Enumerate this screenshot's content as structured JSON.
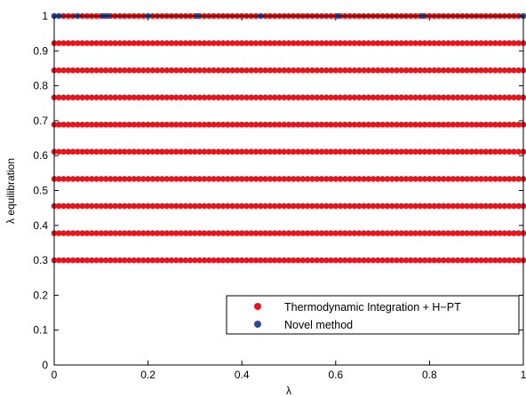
{
  "chart_data": {
    "type": "scatter",
    "xlabel": "λ",
    "ylabel": "λ equilibration",
    "xlim": [
      0,
      1
    ],
    "ylim": [
      0,
      1
    ],
    "x_ticks": [
      0,
      0.2,
      0.4,
      0.6,
      0.8,
      1
    ],
    "x_tick_labels": [
      "0",
      "0.2",
      "0.4",
      "0.6",
      "0.8",
      "1"
    ],
    "y_ticks": [
      0,
      0.1,
      0.2,
      0.3,
      0.4,
      0.5,
      0.6,
      0.7,
      0.8,
      0.9,
      1
    ],
    "y_tick_labels": [
      "0",
      "0.1",
      "0.2",
      "0.3",
      "0.4",
      "0.5",
      "0.6",
      "0.7",
      "0.8",
      "0.9",
      "1"
    ],
    "grid": false,
    "legend_position": "bottom-right",
    "series": [
      {
        "name": "Thermodynamic Integration + H−PT",
        "color": "#e8141c",
        "marker": "circle",
        "description": "points on horizontal levels 0.3, 0.3778, 0.4556, 0.5333, 0.6111, 0.6889, 0.7667, 0.8444, 0.9222, 1 with lambda from 0 to 1 in steps of 0.01",
        "levels": [
          0.3,
          0.3778,
          0.4556,
          0.5333,
          0.6111,
          0.6889,
          0.7667,
          0.8444,
          0.9222,
          1.0
        ],
        "x_start": 0,
        "x_end": 1,
        "x_step": 0.01
      },
      {
        "name": "Novel method",
        "color": "#2b4a9e",
        "marker": "circle",
        "x": [
          0.0,
          0.01,
          0.05,
          0.105,
          0.115,
          0.2,
          0.305,
          0.44,
          0.605,
          0.785,
          1.0
        ],
        "y": [
          1,
          1,
          1,
          1,
          1,
          1,
          1,
          1,
          1,
          1,
          1
        ]
      }
    ]
  }
}
